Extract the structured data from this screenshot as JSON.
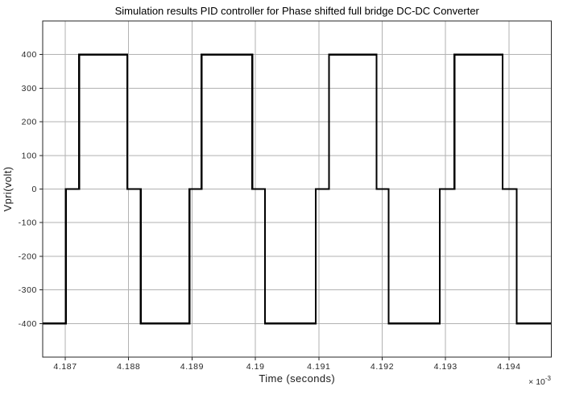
{
  "window": {
    "background": "#ffffff"
  },
  "chart_data": {
    "type": "line",
    "subtype": "step-square-wave",
    "title": "Simulation results PID controller for Phase shifted full bridge DC-DC Converter",
    "xlabel": "Time (seconds)",
    "ylabel": "Vpri(volt)",
    "x_multiplier_prefix": "× 10",
    "x_multiplier_exponent": "-3",
    "xlim": [
      4.186644,
      4.194668
    ],
    "ylim": [
      -500,
      500
    ],
    "xticks": [
      4.187,
      4.188,
      4.189,
      4.19,
      4.191,
      4.192,
      4.193,
      4.194
    ],
    "xtick_labels": [
      "4.187",
      "4.188",
      "4.189",
      "4.19",
      "4.191",
      "4.192",
      "4.193",
      "4.194"
    ],
    "yticks": [
      -400,
      -300,
      -200,
      -100,
      0,
      100,
      200,
      300,
      400
    ],
    "ytick_labels": [
      "-400",
      "-300",
      "-200",
      "-100",
      "0",
      "100",
      "200",
      "300",
      "400"
    ],
    "grid": true,
    "legend": "none",
    "line_width": 2.2,
    "colors": {
      "line": "#000000",
      "grid": "#b2b2b2",
      "axis": "#262626",
      "title": "#000000",
      "background": "#ffffff"
    },
    "series": [
      {
        "name": "Vpri(volt)",
        "step_points": [
          [
            4.186644,
            -400
          ],
          [
            4.18701,
            0
          ],
          [
            4.18722,
            400
          ],
          [
            4.18798,
            0
          ],
          [
            4.18819,
            -400
          ],
          [
            4.18896,
            0
          ],
          [
            4.18915,
            400
          ],
          [
            4.18995,
            0
          ],
          [
            4.19015,
            -400
          ],
          [
            4.19095,
            0
          ],
          [
            4.19116,
            400
          ],
          [
            4.19191,
            0
          ],
          [
            4.1921,
            -400
          ],
          [
            4.19291,
            0
          ],
          [
            4.19314,
            400
          ],
          [
            4.1939,
            0
          ],
          [
            4.19412,
            -400
          ]
        ],
        "t_end": 4.194668
      }
    ]
  }
}
